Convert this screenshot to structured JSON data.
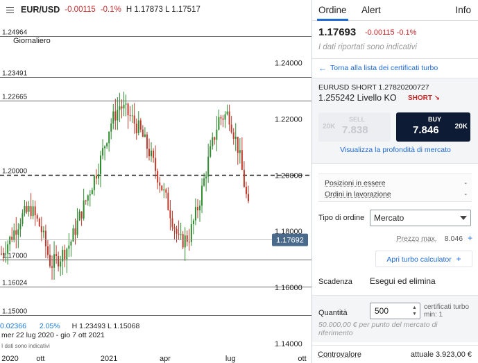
{
  "chart": {
    "header": {
      "symbol": "EUR/USD",
      "change_abs": "-0.00115",
      "change_pct": "-0.1%",
      "high_low": "H 1.17873  L 1.17517"
    },
    "period": "Giornaliero",
    "stats": {
      "left_value": "0.02366",
      "left_pct": "2.05%",
      "high_low": "H 1.23493  L 1.15068"
    },
    "date_range": "mer 22 lug 2020 - gio 7 ott 2021",
    "disclaimer": "I dati sono indicativi",
    "colors": {
      "up": "#2e8b2e",
      "down": "#c0392b",
      "current_price_bg": "#4a6a8c"
    }
  },
  "chart_data": {
    "type": "candlestick",
    "y_axis_ticks": [
      "1.24000",
      "1.22000",
      "1.20000",
      "1.18000",
      "1.16000",
      "1.14000"
    ],
    "x_axis_ticks": [
      "2020",
      "ott",
      "2021",
      "apr",
      "lug",
      "ott"
    ],
    "level_labels": [
      {
        "text": "1.24964",
        "value": 1.24964
      },
      {
        "text": "1.23491",
        "value": 1.23491
      },
      {
        "text": "1.22665",
        "value": 1.22665
      },
      {
        "text": "1.20000",
        "value": 1.2,
        "dashed": true
      },
      {
        "text": "1.17000",
        "value": 1.17
      },
      {
        "text": "1.16024",
        "value": 1.16024
      },
      {
        "text": "1.15000",
        "value": 1.15
      }
    ],
    "current_price": {
      "text": "1.17692",
      "value": 1.17692
    },
    "ylim": [
      1.1375,
      1.2555
    ],
    "grid": false,
    "path_points": [
      [
        0,
        1.172
      ],
      [
        0.04,
        1.178
      ],
      [
        0.08,
        1.185
      ],
      [
        0.12,
        1.188
      ],
      [
        0.16,
        1.181
      ],
      [
        0.2,
        1.168
      ],
      [
        0.24,
        1.171
      ],
      [
        0.28,
        1.176
      ],
      [
        0.32,
        1.186
      ],
      [
        0.36,
        1.195
      ],
      [
        0.4,
        1.205
      ],
      [
        0.44,
        1.218
      ],
      [
        0.48,
        1.225
      ],
      [
        0.52,
        1.221
      ],
      [
        0.56,
        1.216
      ],
      [
        0.6,
        1.208
      ],
      [
        0.64,
        1.198
      ],
      [
        0.68,
        1.188
      ],
      [
        0.72,
        1.176
      ],
      [
        0.76,
        1.178
      ],
      [
        0.8,
        1.19
      ],
      [
        0.84,
        1.206
      ],
      [
        0.88,
        1.22
      ],
      [
        0.92,
        1.222
      ],
      [
        0.96,
        1.209
      ],
      [
        1.0,
        1.188
      ]
    ]
  },
  "order_panel": {
    "tabs": {
      "order": "Ordine",
      "alert": "Alert",
      "info": "Info"
    },
    "quote": {
      "price": "1.17693",
      "change": "-0.00115  -0.1%",
      "note": "I dati riportati sono indicativi"
    },
    "back_link": "Torna alla lista dei certificati turbo",
    "certificate": {
      "name": "EURUSD SHORT 1.27820200727",
      "knockout": "1.255242 Livello KO",
      "direction": "SHORT ↘"
    },
    "sell": {
      "label": "SELL",
      "price": "7.838",
      "qty": "20K"
    },
    "buy": {
      "label": "BUY",
      "price": "7.846",
      "qty": "20K"
    },
    "depth_link": "Visualizza la profondità di mercato",
    "positions": [
      {
        "label": "Posizioni in essere",
        "value": "-"
      },
      {
        "label": "Ordini in lavorazione",
        "value": "-"
      }
    ],
    "order_type": {
      "label": "Tipo di ordine",
      "value": "Mercato"
    },
    "max_price": {
      "label": "Prezzo max.",
      "value": "8.046",
      "plus": "+"
    },
    "calculator": {
      "label": "Apri turbo calculator",
      "plus": "+"
    },
    "expiry": {
      "label": "Scadenza",
      "value": "Esegui ed elimina"
    },
    "quantity": {
      "label": "Quantità",
      "value": "500",
      "unit_line1": "certificati turbo",
      "unit_line2": "min: 1",
      "note": "50.000,00 € per punto del mercato di riferimento"
    },
    "footer": {
      "label": "Controvalore",
      "value": "attuale 3.923,00 €"
    }
  }
}
